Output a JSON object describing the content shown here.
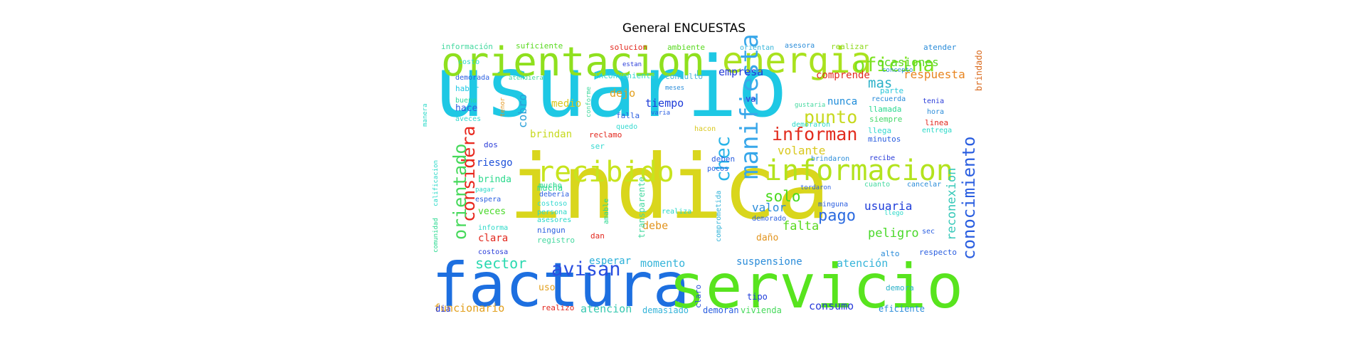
{
  "chart_data": {
    "type": "wordcloud",
    "title": "General ENCUESTAS",
    "words": [
      {
        "text": "usuario",
        "color": "#1ec8e4"
      },
      {
        "text": "indica",
        "color": "#d9d61c"
      },
      {
        "text": "factura",
        "color": "#1d6fe0"
      },
      {
        "text": "servicio",
        "color": "#58e41e"
      },
      {
        "text": "orientacion",
        "color": "#8fe01e"
      },
      {
        "text": "energia",
        "color": "#a9e21e"
      },
      {
        "text": "recibido",
        "color": "#c7e41e"
      },
      {
        "text": "informacion",
        "color": "#b3e31e"
      },
      {
        "text": "oficina",
        "color": "#7be21e"
      },
      {
        "text": "informan",
        "color": "#e22c1e"
      },
      {
        "text": "punto",
        "color": "#c7d91e"
      },
      {
        "text": "manifiesta",
        "color": "#38a7ea"
      },
      {
        "text": "chec",
        "color": "#29b4e8"
      },
      {
        "text": "considera",
        "color": "#e8281e"
      },
      {
        "text": "orientado",
        "color": "#45d95a"
      },
      {
        "text": "conocimiento",
        "color": "#2a5ee0"
      },
      {
        "text": "reconexion",
        "color": "#35c8b8"
      },
      {
        "text": "avisan",
        "color": "#2a4fe0"
      },
      {
        "text": "sector",
        "color": "#2ad9b0"
      },
      {
        "text": "pago",
        "color": "#2c6be0"
      },
      {
        "text": "solo",
        "color": "#4ad91e"
      },
      {
        "text": "empresa",
        "color": "#2239d8"
      },
      {
        "text": "mas",
        "color": "#2ab0c8"
      },
      {
        "text": "respuesta",
        "color": "#e8841e"
      },
      {
        "text": "ocasiones",
        "color": "#58d91e"
      },
      {
        "text": "brindado",
        "color": "#d96a1e"
      },
      {
        "text": "comprende",
        "color": "#e2281e"
      },
      {
        "text": "dejo",
        "color": "#e2a01e"
      },
      {
        "text": "medio",
        "color": "#d9c81e"
      },
      {
        "text": "cobro",
        "color": "#2aa0d9"
      },
      {
        "text": "brindan",
        "color": "#c7d91e"
      },
      {
        "text": "tiempo",
        "color": "#1e3cd9"
      },
      {
        "text": "nunca",
        "color": "#1e8cd9"
      },
      {
        "text": "riesgo",
        "color": "#1e50d9"
      },
      {
        "text": "brinda",
        "color": "#2ad98c"
      },
      {
        "text": "veces",
        "color": "#4ad92a"
      },
      {
        "text": "clara",
        "color": "#e2281e"
      },
      {
        "text": "volante",
        "color": "#d9c81e"
      },
      {
        "text": "usuaria",
        "color": "#1e3cd9"
      },
      {
        "text": "peligro",
        "color": "#4ad92a"
      },
      {
        "text": "falta",
        "color": "#58d91e"
      },
      {
        "text": "valor",
        "color": "#2a8cd9"
      },
      {
        "text": "debe",
        "color": "#e2941e"
      },
      {
        "text": "momento",
        "color": "#35b4d9"
      },
      {
        "text": "esperar",
        "color": "#2ab0d9"
      },
      {
        "text": "suspensione",
        "color": "#2a8cd9"
      },
      {
        "text": "atención",
        "color": "#35b4d9"
      },
      {
        "text": "consumo",
        "color": "#2a3cd9"
      },
      {
        "text": "funcionario",
        "color": "#e2a01e"
      },
      {
        "text": "atencion",
        "color": "#35c8b0"
      },
      {
        "text": "demasiado",
        "color": "#35b4d9"
      },
      {
        "text": "demoran",
        "color": "#2a5ee0"
      },
      {
        "text": "vivienda",
        "color": "#45d95a"
      },
      {
        "text": "eficiente",
        "color": "#2a8cd9"
      },
      {
        "text": "uso",
        "color": "#e2a01e"
      },
      {
        "text": "dia",
        "color": "#2a3cd9"
      },
      {
        "text": "realizo",
        "color": "#e2281e"
      },
      {
        "text": "claro",
        "color": "#2a4fd9"
      },
      {
        "text": "tipo",
        "color": "#1e3cd9"
      },
      {
        "text": "demora",
        "color": "#2ab0c8"
      },
      {
        "text": "información",
        "color": "#45d9a0"
      },
      {
        "text": "suficiente",
        "color": "#58d91e"
      },
      {
        "text": "solucion",
        "color": "#e2281e"
      },
      {
        "text": "ambiente",
        "color": "#58d91e"
      },
      {
        "text": "orientan",
        "color": "#35b4d9"
      },
      {
        "text": "asesora",
        "color": "#2a8cd9"
      },
      {
        "text": "realizar",
        "color": "#8fd91e"
      },
      {
        "text": "atender",
        "color": "#2a8cd9"
      },
      {
        "text": "inconveniente",
        "color": "#35d9d0"
      },
      {
        "text": "consulto",
        "color": "#45b4d9"
      },
      {
        "text": "estan",
        "color": "#2a3cd9"
      },
      {
        "text": "costo",
        "color": "#2ad9c8"
      },
      {
        "text": "demorada",
        "color": "#2a5ee0"
      },
      {
        "text": "atendiera",
        "color": "#45d9a0"
      },
      {
        "text": "concepto",
        "color": "#2a8cd9"
      },
      {
        "text": "haber",
        "color": "#1ec8e4"
      },
      {
        "text": "hace",
        "color": "#2a5ee0"
      },
      {
        "text": "buena",
        "color": "#2ad9a0"
      },
      {
        "text": "aveces",
        "color": "#35d9d0"
      },
      {
        "text": "va",
        "color": "#2a3cd9"
      },
      {
        "text": "parte",
        "color": "#2ac8d9"
      },
      {
        "text": "recuerda",
        "color": "#2a8cd9"
      },
      {
        "text": "llamada",
        "color": "#2ad990"
      },
      {
        "text": "siempre",
        "color": "#45d96a"
      },
      {
        "text": "llega",
        "color": "#35d9d0"
      },
      {
        "text": "minutos",
        "color": "#2a5ee0"
      },
      {
        "text": "tenia",
        "color": "#2a3cd9"
      },
      {
        "text": "hora",
        "color": "#2a8cd9"
      },
      {
        "text": "linea",
        "color": "#e2281e"
      },
      {
        "text": "entrega",
        "color": "#2ad9c8"
      },
      {
        "text": "gustaria",
        "color": "#45d9a0"
      },
      {
        "text": "demoraron",
        "color": "#2ad9c8"
      },
      {
        "text": "falla",
        "color": "#2a5ee0"
      },
      {
        "text": "quedo",
        "color": "#35d9d0"
      },
      {
        "text": "conforme",
        "color": "#45d9a0"
      },
      {
        "text": "hacon",
        "color": "#d9c81e"
      },
      {
        "text": "dos",
        "color": "#2a3cd9"
      },
      {
        "text": "ser",
        "color": "#35d9d0"
      },
      {
        "text": "reclamo",
        "color": "#e2281e"
      },
      {
        "text": "deben",
        "color": "#2a5ee0"
      },
      {
        "text": "pocos",
        "color": "#2a5ee0"
      },
      {
        "text": "brindaron",
        "color": "#2a8cd9"
      },
      {
        "text": "recibe",
        "color": "#2a3cd9"
      },
      {
        "text": "cuanto",
        "color": "#45d9a0"
      },
      {
        "text": "cancelar",
        "color": "#2a8cd9"
      },
      {
        "text": "mucha",
        "color": "#2ad990"
      },
      {
        "text": "espera",
        "color": "#2a5ee0"
      },
      {
        "text": "costoso",
        "color": "#35d9d0"
      },
      {
        "text": "persona",
        "color": "#2ad9c8"
      },
      {
        "text": "asesores",
        "color": "#2ad9c8"
      },
      {
        "text": "informa",
        "color": "#2ad9c8"
      },
      {
        "text": "ningun",
        "color": "#2a5ee0"
      },
      {
        "text": "registro",
        "color": "#45d9a0"
      },
      {
        "text": "costosa",
        "color": "#2a3cd9"
      },
      {
        "text": "deberia",
        "color": "#2a5ee0"
      },
      {
        "text": "dan",
        "color": "#e2281e"
      },
      {
        "text": "realiza",
        "color": "#2ad9c8"
      },
      {
        "text": "daño",
        "color": "#e2941e"
      },
      {
        "text": "minguna",
        "color": "#2a5ee0"
      },
      {
        "text": "alto",
        "color": "#2a8cd9"
      },
      {
        "text": "respecto",
        "color": "#2a5ee0"
      },
      {
        "text": "sec",
        "color": "#2a5ee0"
      },
      {
        "text": "pagar",
        "color": "#2ad9c8"
      },
      {
        "text": "mucho",
        "color": "#2ad990"
      },
      {
        "text": "comprometida",
        "color": "#35b4d9"
      },
      {
        "text": "transparente",
        "color": "#45d9a0"
      },
      {
        "text": "amable",
        "color": "#2ad990"
      },
      {
        "text": "comunidad",
        "color": "#2ad990"
      },
      {
        "text": "calificacion",
        "color": "#2ad9c8"
      },
      {
        "text": "manera",
        "color": "#2ad9c8"
      },
      {
        "text": "demorado",
        "color": "#2a5ee0"
      },
      {
        "text": "tordaron",
        "color": "#2a5ee0"
      },
      {
        "text": "meses",
        "color": "#2a8cd9"
      },
      {
        "text": "varia",
        "color": "#2a5ee0"
      },
      {
        "text": "llego",
        "color": "#2ad9c8"
      },
      {
        "text": "tenor",
        "color": "#e2941e"
      }
    ]
  }
}
